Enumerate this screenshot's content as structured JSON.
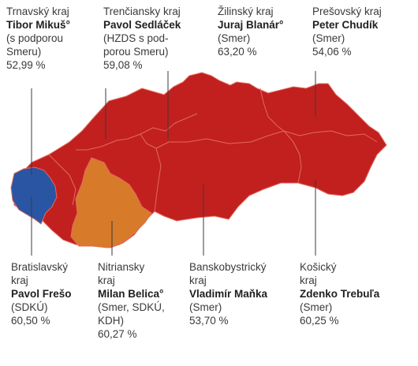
{
  "colors": {
    "smer": "#c1201f",
    "sdku": "#2a55a3",
    "coalition": "#d77a2a",
    "border": "#e26a5e"
  },
  "regions": [
    {
      "id": "trnava",
      "line1": "Trnavský kraj",
      "line2": null,
      "name": "Tibor Mikuš°",
      "party": [
        "(s podporou",
        "Smeru)"
      ],
      "result": "52,99 %"
    },
    {
      "id": "trencin",
      "line1": "Trenčiansky kraj",
      "line2": null,
      "name": "Pavol Sedláček",
      "party": [
        "(HZDS s pod-",
        "porou Smeru)"
      ],
      "result": "59,08 %"
    },
    {
      "id": "zilina",
      "line1": "Žilinský kraj",
      "line2": null,
      "name": "Juraj Blanár°",
      "party": [
        "(Smer)"
      ],
      "result": "63,20 %"
    },
    {
      "id": "presov",
      "line1": "Prešovský kraj",
      "line2": null,
      "name": "Peter Chudík",
      "party": [
        "(Smer)"
      ],
      "result": "54,06 %"
    },
    {
      "id": "bratislava",
      "line1": "Bratislavský",
      "line2": "kraj",
      "name": "Pavol Frešo",
      "party": [
        "(SDKÚ)"
      ],
      "result": "60,50 %"
    },
    {
      "id": "nitra",
      "line1": "Nitriansky",
      "line2": "kraj",
      "name": "Milan Belica°",
      "party": [
        "(Smer, SDKÚ,",
        "KDH)"
      ],
      "result": "60,27 %"
    },
    {
      "id": "bbystrica",
      "line1": "Banskobystrický",
      "line2": "kraj",
      "name": "Vladimír Maňka",
      "party": [
        "(Smer)"
      ],
      "result": "53,70 %"
    },
    {
      "id": "kosice",
      "line1": "Košický",
      "line2": "kraj",
      "name": "Zdenko Trebuľa",
      "party": [
        "(Smer)"
      ],
      "result": "60,25 %"
    }
  ]
}
